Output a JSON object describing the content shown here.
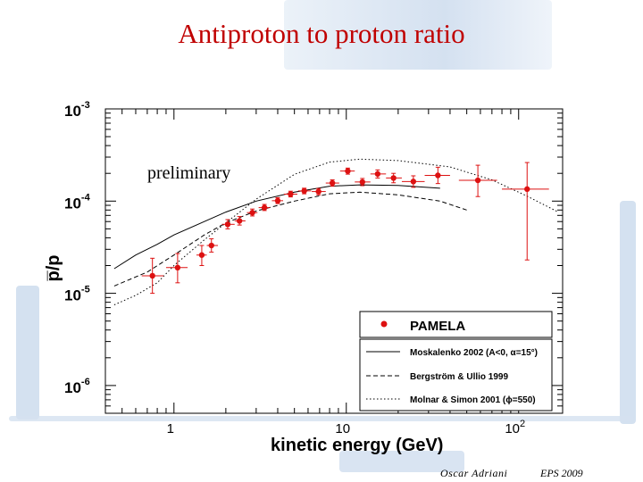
{
  "slide": {
    "title": "Antiproton to proton ratio",
    "footer_author": "Oscar Adriani",
    "footer_event": "EPS 2009"
  },
  "colors": {
    "title": "#c00000",
    "data": "#dd1111",
    "deco": "#c5d6ea"
  },
  "chart_data": {
    "type": "scatter",
    "title": "",
    "annotation": "preliminary",
    "xlabel": "kinetic energy (GeV)",
    "ylabel": "p̅/p",
    "xscale": "log",
    "yscale": "log",
    "xlim": [
      0.4,
      180
    ],
    "ylim": [
      5e-07,
      0.001
    ],
    "x_ticks": [
      {
        "value": 1,
        "label": "1"
      },
      {
        "value": 10,
        "label": "10"
      },
      {
        "value": 100,
        "label": "10",
        "sup": "2"
      }
    ],
    "y_ticks": [
      {
        "value": 0.001,
        "label": "10",
        "sup": "-3"
      },
      {
        "value": 0.0001,
        "label": "10",
        "sup": "-4"
      },
      {
        "value": 1e-05,
        "label": "10",
        "sup": "-5"
      },
      {
        "value": 1e-06,
        "label": "10",
        "sup": "-6"
      }
    ],
    "series": [
      {
        "name": "PAMELA",
        "style": "points",
        "points": [
          {
            "x": 0.75,
            "xlo": 0.65,
            "xhi": 0.87,
            "y": 1.55e-05,
            "ylo": 1e-05,
            "yhi": 2.4e-05
          },
          {
            "x": 1.05,
            "xlo": 0.9,
            "xhi": 1.2,
            "y": 1.9e-05,
            "ylo": 1.3e-05,
            "yhi": 2.7e-05
          },
          {
            "x": 1.45,
            "xlo": 1.35,
            "xhi": 1.55,
            "y": 2.6e-05,
            "ylo": 2e-05,
            "yhi": 3.3e-05
          },
          {
            "x": 1.65,
            "xlo": 1.55,
            "xhi": 1.8,
            "y": 3.3e-05,
            "ylo": 2.8e-05,
            "yhi": 3.9e-05
          },
          {
            "x": 2.05,
            "xlo": 1.9,
            "xhi": 2.25,
            "y": 5.6e-05,
            "ylo": 5e-05,
            "yhi": 6.3e-05
          },
          {
            "x": 2.4,
            "xlo": 2.25,
            "xhi": 2.6,
            "y": 6.1e-05,
            "ylo": 5.5e-05,
            "yhi": 6.8e-05
          },
          {
            "x": 2.85,
            "xlo": 2.65,
            "xhi": 3.05,
            "y": 7.5e-05,
            "ylo": 6.9e-05,
            "yhi": 8.2e-05
          },
          {
            "x": 3.35,
            "xlo": 3.1,
            "xhi": 3.6,
            "y": 8.5e-05,
            "ylo": 7.9e-05,
            "yhi": 9.2e-05
          },
          {
            "x": 4.0,
            "xlo": 3.7,
            "xhi": 4.3,
            "y": 0.000101,
            "ylo": 9.4e-05,
            "yhi": 0.000109
          },
          {
            "x": 4.75,
            "xlo": 4.35,
            "xhi": 5.2,
            "y": 0.000119,
            "ylo": 0.000111,
            "yhi": 0.000128
          },
          {
            "x": 5.7,
            "xlo": 5.25,
            "xhi": 6.25,
            "y": 0.000129,
            "ylo": 0.00012,
            "yhi": 0.000138
          },
          {
            "x": 6.9,
            "xlo": 6.3,
            "xhi": 7.6,
            "y": 0.000127,
            "ylo": 0.000117,
            "yhi": 0.000137
          },
          {
            "x": 8.3,
            "xlo": 7.6,
            "xhi": 9.1,
            "y": 0.000157,
            "ylo": 0.000145,
            "yhi": 0.00017
          },
          {
            "x": 10.2,
            "xlo": 9.2,
            "xhi": 11.2,
            "y": 0.000212,
            "ylo": 0.000196,
            "yhi": 0.000228
          },
          {
            "x": 12.4,
            "xlo": 11.2,
            "xhi": 13.8,
            "y": 0.000161,
            "ylo": 0.000147,
            "yhi": 0.000176
          },
          {
            "x": 15.2,
            "xlo": 13.8,
            "xhi": 17.0,
            "y": 0.000197,
            "ylo": 0.000178,
            "yhi": 0.000218
          },
          {
            "x": 18.8,
            "xlo": 17.0,
            "xhi": 21.0,
            "y": 0.000178,
            "ylo": 0.000158,
            "yhi": 0.0002
          },
          {
            "x": 24.5,
            "xlo": 21.0,
            "xhi": 28.5,
            "y": 0.000163,
            "ylo": 0.000141,
            "yhi": 0.000188
          },
          {
            "x": 34.0,
            "xlo": 28.5,
            "xhi": 40.0,
            "y": 0.00019,
            "ylo": 0.000155,
            "yhi": 0.000233
          },
          {
            "x": 58.0,
            "xlo": 45.0,
            "xhi": 75.0,
            "y": 0.000168,
            "ylo": 0.000112,
            "yhi": 0.000245
          },
          {
            "x": 112.0,
            "xlo": 80.0,
            "xhi": 150.0,
            "y": 0.000135,
            "ylo": 2.3e-05,
            "yhi": 0.000262
          }
        ]
      },
      {
        "name": "Moskalenko 2002 (A<0, α=15°)",
        "style": "solid",
        "points": [
          [
            0.45,
            1.85e-05
          ],
          [
            0.6,
            2.6e-05
          ],
          [
            0.8,
            3.4e-05
          ],
          [
            1.0,
            4.3e-05
          ],
          [
            1.5,
            6e-05
          ],
          [
            2,
            7.6e-05
          ],
          [
            3,
            0.0001
          ],
          [
            5,
            0.000125
          ],
          [
            8,
            0.000145
          ],
          [
            12,
            0.00015
          ],
          [
            20,
            0.000148
          ],
          [
            35,
            0.000138
          ]
        ]
      },
      {
        "name": "Bergström & Ullio 1999",
        "style": "dashed",
        "points": [
          [
            0.45,
            1.2e-05
          ],
          [
            0.7,
            1.7e-05
          ],
          [
            1,
            2.6e-05
          ],
          [
            1.5,
            4.3e-05
          ],
          [
            2,
            5.8e-05
          ],
          [
            3,
            7.8e-05
          ],
          [
            5,
            0.0001
          ],
          [
            8,
            0.00012
          ],
          [
            12,
            0.000125
          ],
          [
            20,
            0.000117
          ],
          [
            35,
            0.0001
          ],
          [
            50,
            8e-05
          ]
        ]
      },
      {
        "name": "Molnar & Simon 2001 (ϕ=550)",
        "style": "dotted",
        "points": [
          [
            0.45,
            7.5e-06
          ],
          [
            0.6,
            9.5e-06
          ],
          [
            0.8,
            1.3e-05
          ],
          [
            1,
            2e-05
          ],
          [
            1.5,
            3.8e-05
          ],
          [
            2,
            5.8e-05
          ],
          [
            3,
            0.000105
          ],
          [
            5,
            0.000195
          ],
          [
            8,
            0.000265
          ],
          [
            12,
            0.000285
          ],
          [
            20,
            0.000275
          ],
          [
            40,
            0.000235
          ],
          [
            70,
            0.00017
          ],
          [
            110,
            0.000115
          ],
          [
            170,
            7.6e-05
          ]
        ]
      }
    ],
    "legend": {
      "position": "bottom-right",
      "entries": [
        "PAMELA",
        "Moskalenko 2002 (A<0, α=15°)",
        "Bergström & Ullio 1999",
        "Molnar & Simon 2001 (ϕ=550)"
      ]
    }
  }
}
